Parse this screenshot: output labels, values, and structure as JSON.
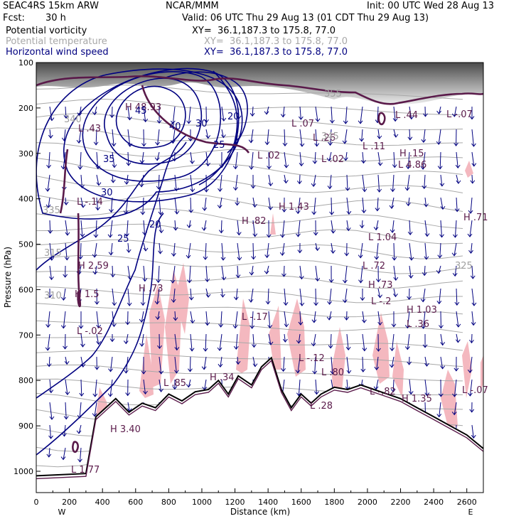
{
  "header": {
    "model": "SEAC4RS 15km ARW",
    "org": "NCAR/MMM",
    "init": "Init: 00 UTC Wed 28 Aug 13",
    "fcst_label": "Fcst:",
    "fcst_value": "30 h",
    "valid": "Valid: 06 UTC Thu 29 Aug 13 (01 CDT Thu 29 Aug 13)",
    "fields": [
      {
        "name": "Potential vorticity",
        "xy": "XY=  36.1,187.3 to 175.8, 77.0",
        "color": "#000000"
      },
      {
        "name": "Potential temperature",
        "xy": "XY=  36.1,187.3 to 175.8, 77.0",
        "color": "#a8a8a8"
      },
      {
        "name": "Horizontal wind speed",
        "xy": "XY=  36.1,187.3 to 175.8, 77.0",
        "color": "#000080"
      }
    ]
  },
  "chart_data": {
    "type": "cross-section",
    "xlabel": "Distance (km)",
    "ylabel": "Pressure (hPa)",
    "xlim": [
      0,
      2700
    ],
    "ylim": [
      1050,
      100
    ],
    "x_ticks": [
      "0",
      "200",
      "400",
      "600",
      "800",
      "1000",
      "1200",
      "1400",
      "1600",
      "1800",
      "2000",
      "2200",
      "2400",
      "2600"
    ],
    "y_ticks": [
      "100",
      "200",
      "300",
      "400",
      "500",
      "600",
      "700",
      "800",
      "900",
      "1000"
    ],
    "x_end_labels": {
      "left": "W",
      "right": "E"
    },
    "terrain_pressure": {
      "x": [
        0,
        300,
        360,
        420,
        480,
        560,
        640,
        720,
        800,
        880,
        960,
        1040,
        1100,
        1160,
        1220,
        1300,
        1360,
        1420,
        1480,
        1540,
        1600,
        1660,
        1720,
        1800,
        1880,
        1960,
        2040,
        2120,
        2200,
        2300,
        2400,
        2500,
        2600,
        2700
      ],
      "p": [
        1010,
        1005,
        880,
        860,
        840,
        870,
        850,
        860,
        830,
        845,
        825,
        820,
        800,
        830,
        790,
        810,
        770,
        750,
        820,
        860,
        830,
        850,
        830,
        815,
        820,
        810,
        820,
        830,
        840,
        860,
        880,
        900,
        920,
        950
      ]
    },
    "wind_speed_contours": [
      "20",
      "25",
      "30",
      "35",
      "40",
      "45",
      "20",
      "25",
      "30"
    ],
    "potential_temperature_contours": [
      "310",
      "315",
      "325",
      "335",
      "340",
      "345",
      "355"
    ],
    "pv_extrema": [
      {
        "type": "L",
        "value": "1.77"
      },
      {
        "type": "H",
        "value": "3.40"
      },
      {
        "type": "L",
        "value": "-.02"
      },
      {
        "type": "H",
        "value": "1.5"
      },
      {
        "type": "H",
        "value": "2.59"
      },
      {
        "type": "L",
        "value": "-.14"
      },
      {
        "type": "H",
        "value": ".73"
      },
      {
        "type": "L",
        "value": ".85"
      },
      {
        "type": "H",
        "value": ".34"
      },
      {
        "type": "L",
        "value": "-.17"
      },
      {
        "type": "H",
        "value": ".82"
      },
      {
        "type": "H",
        "value": "1.43"
      },
      {
        "type": "L",
        "value": ".02"
      },
      {
        "type": "L",
        "value": ".07"
      },
      {
        "type": "L",
        "value": ".26"
      },
      {
        "type": "L",
        "value": ".02"
      },
      {
        "type": "L",
        "value": ".11"
      },
      {
        "type": "L",
        "value": "-.12"
      },
      {
        "type": "L",
        "value": ".80"
      },
      {
        "type": "L",
        "value": "1.04"
      },
      {
        "type": "L",
        "value": ".72"
      },
      {
        "type": "H",
        "value": ".73"
      },
      {
        "type": "L",
        "value": "-.2"
      },
      {
        "type": "H",
        "value": "1.03"
      },
      {
        "type": "L",
        "value": ".36"
      },
      {
        "type": "L",
        "value": "4.86"
      },
      {
        "type": "H",
        "value": ".15"
      },
      {
        "type": "L",
        "value": ".44"
      },
      {
        "type": "L",
        "value": "-.07"
      },
      {
        "type": "H",
        "value": ".71"
      },
      {
        "type": "L",
        "value": "-.07"
      },
      {
        "type": "H",
        "value": "1.35"
      },
      {
        "type": "L",
        "value": "-.82"
      },
      {
        "type": "L",
        "value": ".28"
      },
      {
        "type": "H",
        "value": "48.93"
      },
      {
        "type": "L",
        "value": ".43"
      }
    ],
    "colors": {
      "wind_speed": "#000080",
      "potential_temperature": "#a8a8a8",
      "potential_vorticity": "#5a1a4a",
      "shading_pink": "#f4b8bf",
      "terrain": "#000000"
    }
  }
}
